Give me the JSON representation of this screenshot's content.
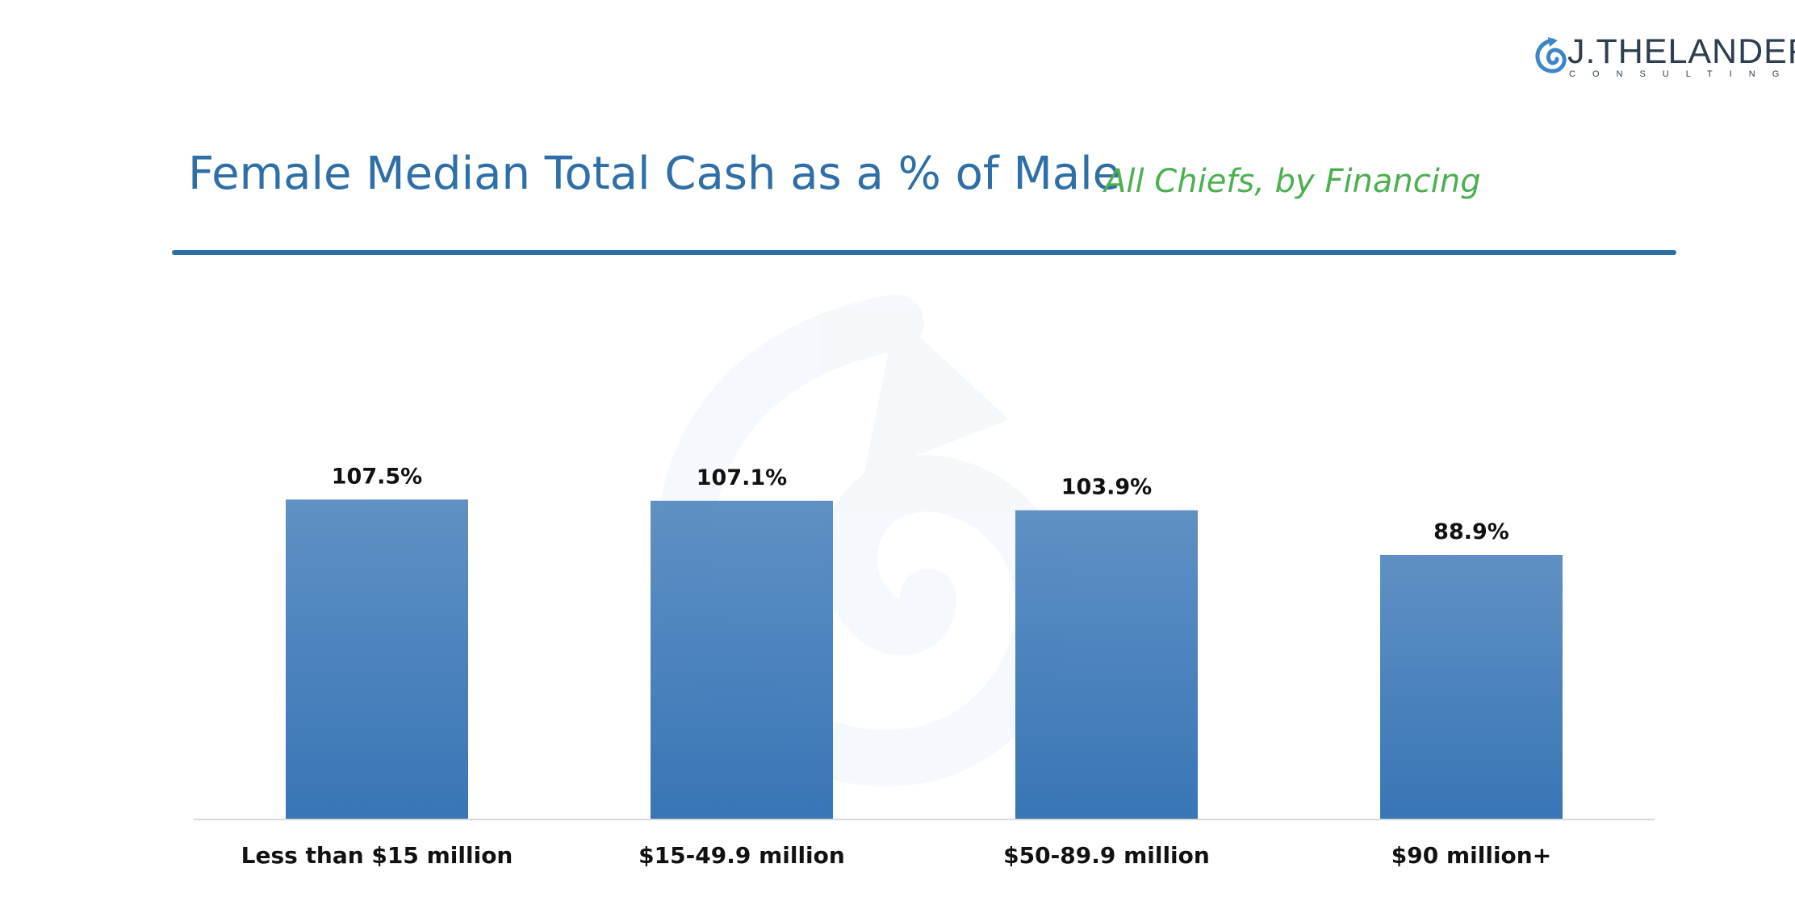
{
  "logo": {
    "name": "J.THELANDER",
    "tagline": "CONSULTING",
    "icon": "spiral-icon"
  },
  "header": {
    "title": "Female Median Total Cash as a % of Male",
    "subtitle": "All Chiefs, by Financing"
  },
  "colors": {
    "title": "#2e6fa7",
    "subtitle": "#4caf50",
    "bar": "#3a7bbf",
    "bar_light": "#5b8fc4",
    "rule": "#2c6fa6"
  },
  "chart_data": {
    "type": "bar",
    "title": "Female Median Total Cash as a % of Male",
    "subtitle": "All Chiefs, by Financing",
    "categories": [
      "Less than $15 million",
      "$15-49.9 million",
      "$50-89.9 million",
      "$90 million+"
    ],
    "values": [
      107.5,
      107.1,
      103.9,
      88.9
    ],
    "value_labels": [
      "107.5%",
      "107.1%",
      "103.9%",
      "88.9%"
    ],
    "xlabel": "",
    "ylabel": "",
    "ylim": [
      0,
      110
    ],
    "grid": false,
    "legend": "none"
  }
}
